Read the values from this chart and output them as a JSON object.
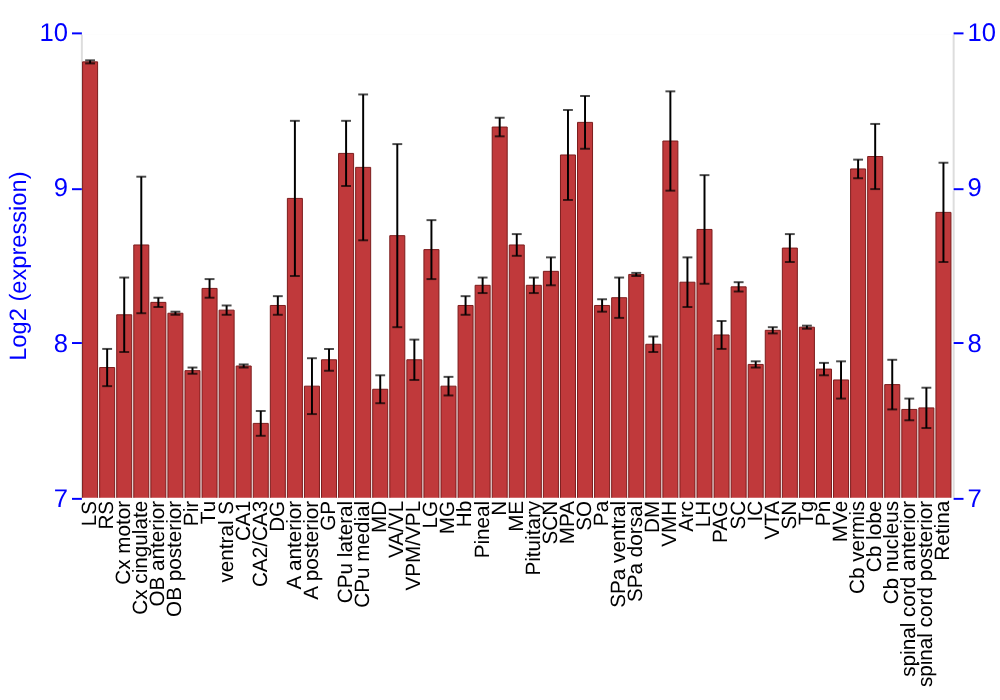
{
  "chart_data": {
    "type": "bar",
    "ylabel": "Log2 (expression)",
    "categories": [
      "LS",
      "RS",
      "Cx motor",
      "Cx cingulate",
      "OB anterior",
      "OB posterior",
      "Pir",
      "Tu",
      "ventral S",
      "CA1",
      "CA2/CA3",
      "DG",
      "A anterior",
      "A posterior",
      "GP",
      "CPu lateral",
      "CPu medial",
      "MD",
      "VA/VL",
      "VPM/VPL",
      "LG",
      "MG",
      "Hb",
      "Pineal",
      "N",
      "ME",
      "Pituitary",
      "SCN",
      "MPA",
      "SO",
      "Pa",
      "SPa ventral",
      "SPa dorsal",
      "DM",
      "VMH",
      "Arc",
      "LH",
      "PAG",
      "SC",
      "IC",
      "VTA",
      "SN",
      "Tg",
      "Pn",
      "MVe",
      "Cb vermis",
      "Cb lobe",
      "Cb nucleus",
      "spinal cord anterior",
      "spinal cord posterior",
      "Retina"
    ],
    "values": [
      9.81,
      7.84,
      8.18,
      8.63,
      8.26,
      8.19,
      7.82,
      8.35,
      8.21,
      7.85,
      7.48,
      8.24,
      8.93,
      7.72,
      7.89,
      9.22,
      9.13,
      7.7,
      8.69,
      7.89,
      8.6,
      7.72,
      8.24,
      8.37,
      9.39,
      8.63,
      8.37,
      8.46,
      9.21,
      9.42,
      8.24,
      8.29,
      8.44,
      7.99,
      9.3,
      8.39,
      8.73,
      8.05,
      8.36,
      7.86,
      8.08,
      8.61,
      8.1,
      7.83,
      7.76,
      9.12,
      9.2,
      7.73,
      7.57,
      7.58,
      8.84
    ],
    "errors": [
      0.01,
      0.12,
      0.24,
      0.44,
      0.03,
      0.01,
      0.02,
      0.06,
      0.03,
      0.01,
      0.08,
      0.06,
      0.5,
      0.18,
      0.07,
      0.21,
      0.47,
      0.09,
      0.59,
      0.13,
      0.19,
      0.06,
      0.06,
      0.05,
      0.06,
      0.07,
      0.05,
      0.09,
      0.29,
      0.17,
      0.04,
      0.13,
      0.01,
      0.05,
      0.32,
      0.16,
      0.35,
      0.09,
      0.03,
      0.02,
      0.02,
      0.09,
      0.01,
      0.04,
      0.12,
      0.06,
      0.21,
      0.16,
      0.07,
      0.13,
      0.32
    ],
    "color": "#c0393b",
    "ylim": [
      7,
      10
    ],
    "yticks": [
      7,
      8,
      9,
      10
    ],
    "y2lim": [
      7,
      10
    ],
    "y2ticks": [
      7,
      8,
      9,
      10
    ],
    "grid": "y"
  }
}
